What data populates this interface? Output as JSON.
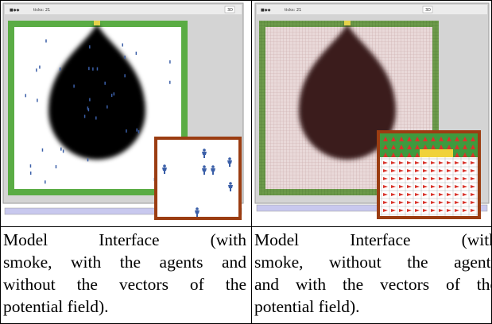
{
  "panels": [
    {
      "toolbar": {
        "ticks": "ticks: 21",
        "button": "3D"
      },
      "caption": [
        "Model Interface (with",
        "smoke, with the agents and",
        "without the vectors of the",
        "potential field)."
      ]
    },
    {
      "toolbar": {
        "ticks": "ticks: 21",
        "button": "3D"
      },
      "caption": [
        "Model Interface (with",
        "smoke, without the agents",
        "and with the vectors of the",
        "potential field)."
      ]
    }
  ]
}
